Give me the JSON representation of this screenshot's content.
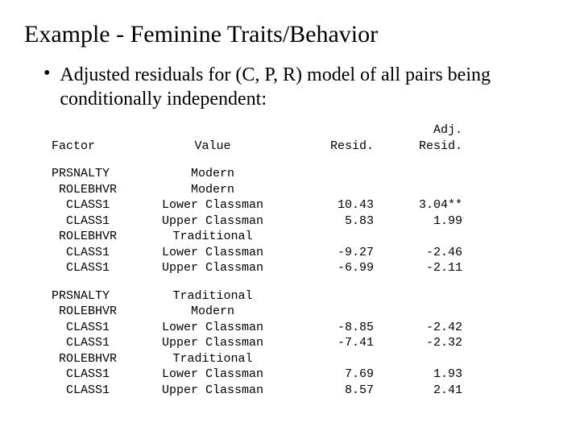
{
  "title": "Example - Feminine Traits/Behavior",
  "bullet": "Adjusted residuals for (C, P, R) model of all pairs being conditionally independent:",
  "headers": {
    "factor": "Factor",
    "value": "Value",
    "resid": "Resid.",
    "adj_line1": "Adj.",
    "adj_line2": "Resid."
  },
  "block1": [
    {
      "factor": "PRSNALTY",
      "value": "Modern",
      "resid": "",
      "adj": ""
    },
    {
      "factor": " ROLEBHVR",
      "value": "Modern",
      "resid": "",
      "adj": ""
    },
    {
      "factor": "  CLASS1",
      "value": "Lower Classman",
      "resid": "10.43",
      "adj": "3.04**"
    },
    {
      "factor": "  CLASS1",
      "value": "Upper Classman",
      "resid": "5.83",
      "adj": "1.99"
    },
    {
      "factor": " ROLEBHVR",
      "value": "Traditional",
      "resid": "",
      "adj": ""
    },
    {
      "factor": "  CLASS1",
      "value": "Lower Classman",
      "resid": "-9.27",
      "adj": "-2.46"
    },
    {
      "factor": "  CLASS1",
      "value": "Upper Classman",
      "resid": "-6.99",
      "adj": "-2.11"
    }
  ],
  "block2": [
    {
      "factor": "PRSNALTY",
      "value": "Traditional",
      "resid": "",
      "adj": ""
    },
    {
      "factor": " ROLEBHVR",
      "value": "Modern",
      "resid": "",
      "adj": ""
    },
    {
      "factor": "  CLASS1",
      "value": "Lower Classman",
      "resid": "-8.85",
      "adj": "-2.42"
    },
    {
      "factor": "  CLASS1",
      "value": "Upper Classman",
      "resid": "-7.41",
      "adj": "-2.32"
    },
    {
      "factor": " ROLEBHVR",
      "value": "Traditional",
      "resid": "",
      "adj": ""
    },
    {
      "factor": "  CLASS1",
      "value": "Lower Classman",
      "resid": "7.69",
      "adj": "1.93"
    },
    {
      "factor": "  CLASS1",
      "value": "Upper Classman",
      "resid": "8.57",
      "adj": "2.41"
    }
  ]
}
